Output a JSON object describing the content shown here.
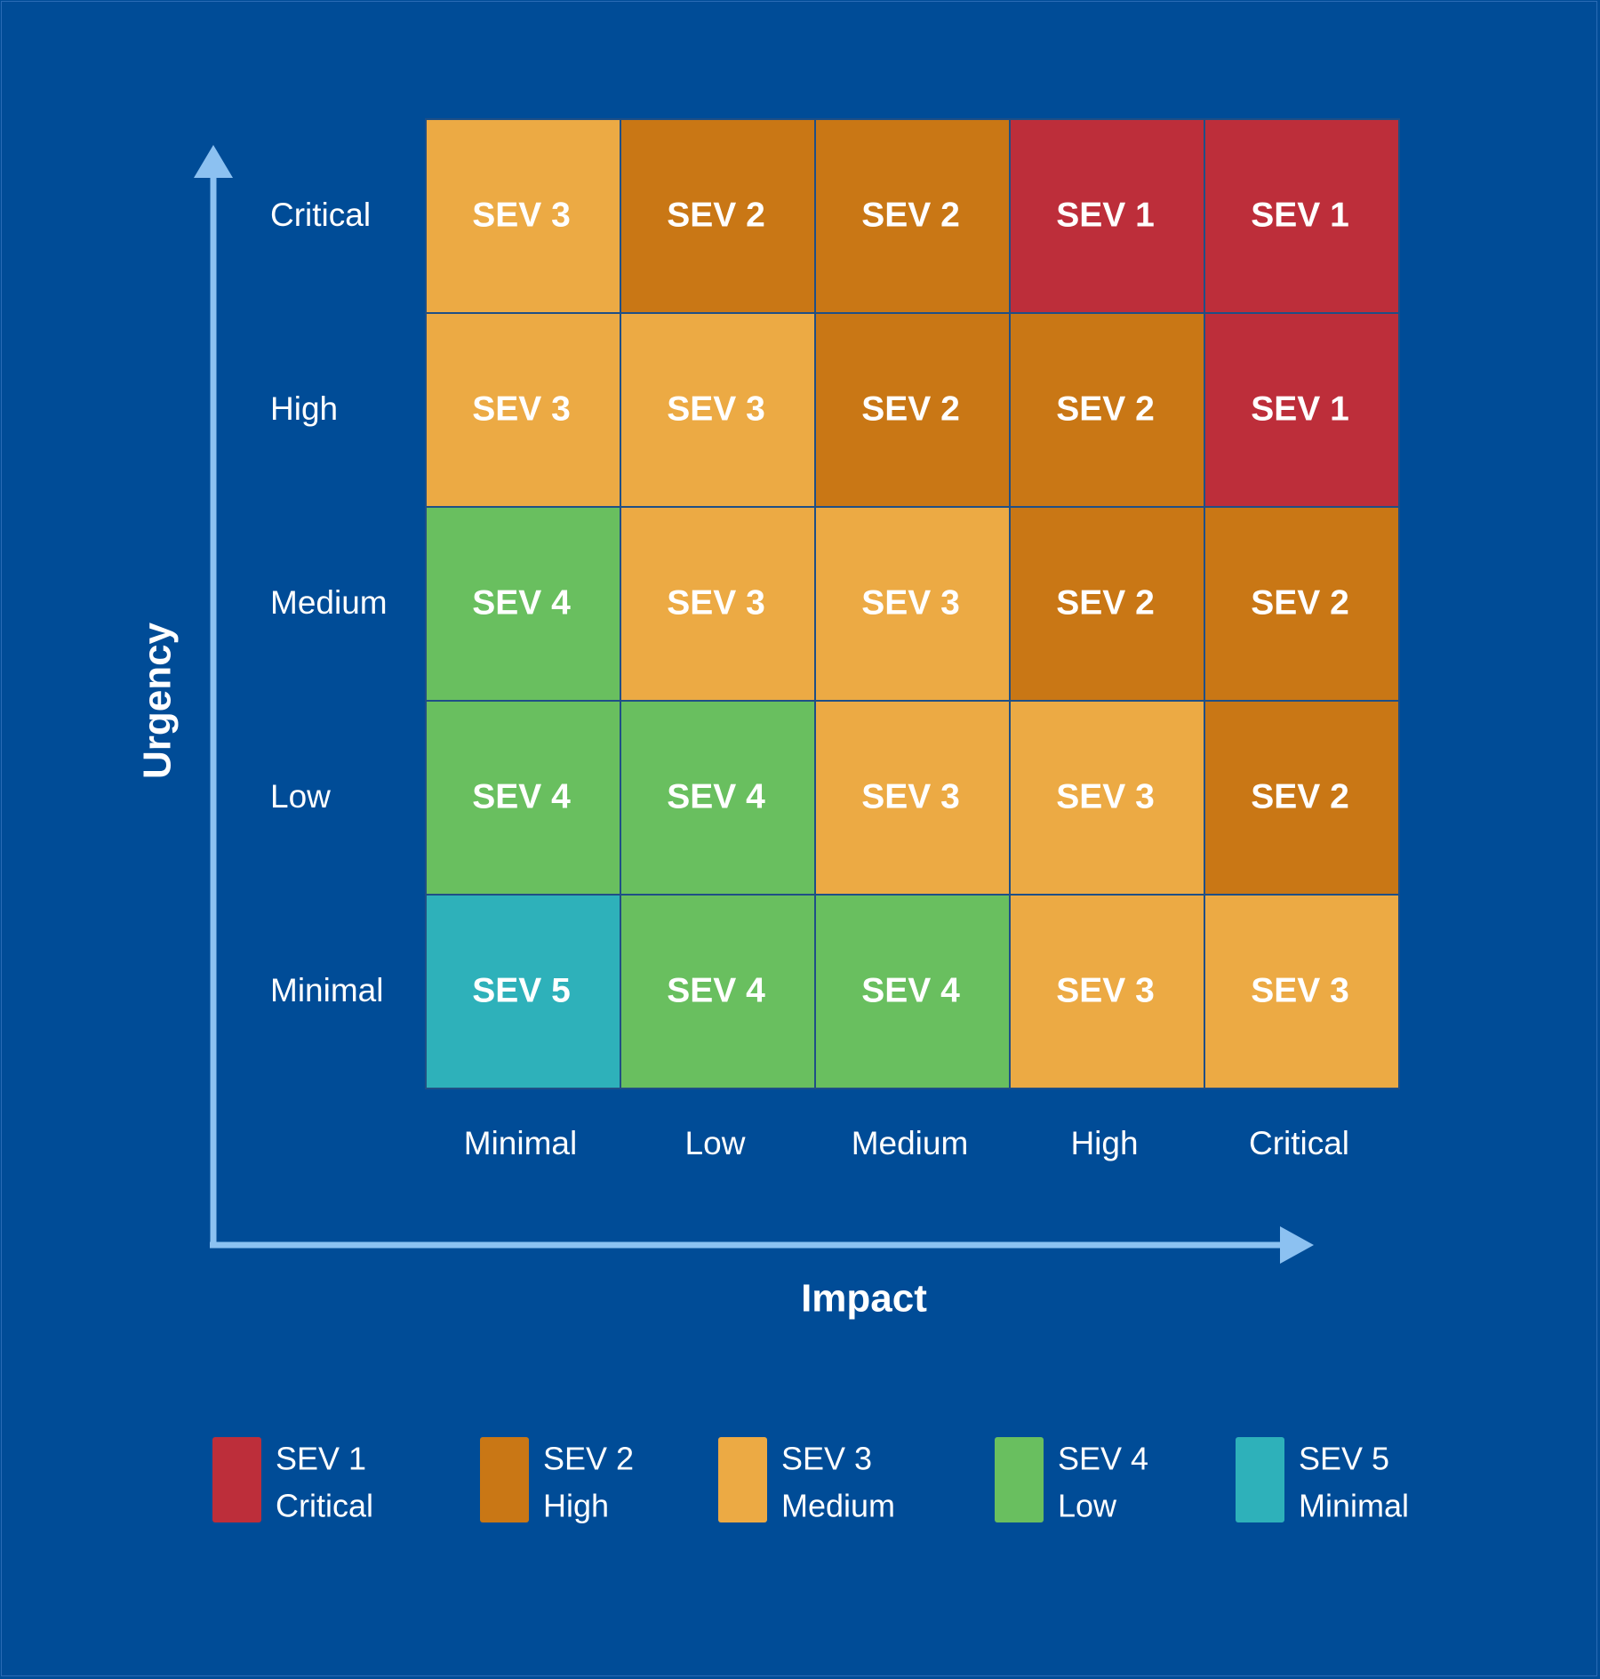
{
  "chart_data": {
    "type": "heatmap",
    "title": "",
    "xlabel": "Impact",
    "ylabel": "Urgency",
    "x_categories": [
      "Minimal",
      "Low",
      "Medium",
      "High",
      "Critical"
    ],
    "y_categories": [
      "Critical",
      "High",
      "Medium",
      "Low",
      "Minimal"
    ],
    "values": [
      [
        "SEV 3",
        "SEV 2",
        "SEV 2",
        "SEV 1",
        "SEV 1"
      ],
      [
        "SEV 3",
        "SEV 3",
        "SEV 2",
        "SEV 2",
        "SEV 1"
      ],
      [
        "SEV 4",
        "SEV 3",
        "SEV 3",
        "SEV 2",
        "SEV 2"
      ],
      [
        "SEV 4",
        "SEV 4",
        "SEV 3",
        "SEV 3",
        "SEV 2"
      ],
      [
        "SEV 5",
        "SEV 4",
        "SEV 4",
        "SEV 3",
        "SEV 3"
      ]
    ],
    "legend": [
      {
        "key": "SEV 1",
        "label": "SEV 1",
        "sublabel": "Critical",
        "color": "#bd2e3a"
      },
      {
        "key": "SEV 2",
        "label": "SEV 2",
        "sublabel": "High",
        "color": "#c97715"
      },
      {
        "key": "SEV 3",
        "label": "SEV 3",
        "sublabel": "Medium",
        "color": "#ecaa44"
      },
      {
        "key": "SEV 4",
        "label": "SEV 4",
        "sublabel": "Low",
        "color": "#69bf5f"
      },
      {
        "key": "SEV 5",
        "label": "SEV 5",
        "sublabel": "Minimal",
        "color": "#2eb1ba"
      }
    ],
    "legend_position": "bottom",
    "grid": true
  },
  "colors": {
    "background": "#004c97",
    "axis_line": "#8cc1f1",
    "grid_line": "#1f4f86",
    "text": "#ffffff"
  }
}
